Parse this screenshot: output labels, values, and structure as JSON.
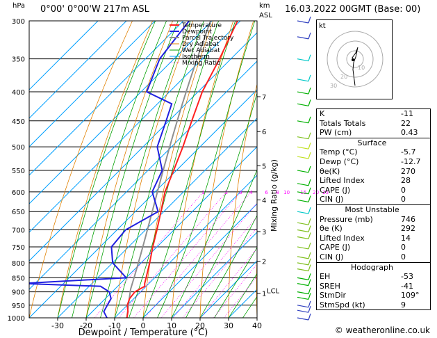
{
  "header": {
    "units_hpa": "hPa",
    "location": "0°00' 0°00'W 217m ASL",
    "units_km": "km",
    "units_asl": "ASL",
    "datetime": "16.03.2022 00GMT (Base: 00)"
  },
  "footer": "© weatheronline.co.uk",
  "colors": {
    "temperature": "#ff2020",
    "dewpoint": "#2020e0",
    "parcel": "#909090",
    "dry_adiabat": "#e08000",
    "wet_adiabat": "#00a000",
    "isotherm": "#00a0ff",
    "mixing_ratio": "#ff00ff"
  },
  "legend": [
    "Temperature",
    "Dewpoint",
    "Parcel Trajectory",
    "Dry Adiabat",
    "Wet Adiabat",
    "Isotherm",
    "Mixing Ratio"
  ],
  "chart_data": {
    "type": "line",
    "xlabel": "Dewpoint / Temperature (°C)",
    "ylabel": "hPa",
    "y2label": "Mixing Ratio (g/kg)",
    "x_ticks": [
      -30,
      -20,
      -10,
      0,
      10,
      20,
      30,
      40
    ],
    "xlim": [
      -40,
      40
    ],
    "pressure_ticks": [
      300,
      350,
      400,
      450,
      500,
      550,
      600,
      650,
      700,
      750,
      800,
      850,
      900,
      950,
      1000
    ],
    "ylim": [
      1000,
      300
    ],
    "y_scale": "log",
    "skew": true,
    "km_ticks": [
      {
        "label": "1",
        "p": 905
      },
      {
        "label": "2",
        "p": 795
      },
      {
        "label": "3",
        "p": 705
      },
      {
        "label": "4",
        "p": 620
      },
      {
        "label": "5",
        "p": 540
      },
      {
        "label": "6",
        "p": 470
      },
      {
        "label": "7",
        "p": 408
      }
    ],
    "lcl": {
      "label": "LCL",
      "p": 895
    },
    "mixing_ratio_labels": [
      "1",
      "2",
      "3",
      "4",
      "6",
      "8",
      "10",
      "15",
      "20",
      "25"
    ],
    "series": [
      {
        "name": "Temperature",
        "p": [
          1000,
          975,
          950,
          925,
          900,
          880,
          870,
          850,
          800,
          750,
          700,
          650,
          600,
          550,
          500,
          450,
          400,
          350,
          300
        ],
        "t": [
          -5.7,
          -7.5,
          -10,
          -11.5,
          -12,
          -10.5,
          -11.5,
          -13,
          -17,
          -21.5,
          -26,
          -31,
          -36.5,
          -41,
          -46,
          -52,
          -58.5,
          -64,
          -71
        ]
      },
      {
        "name": "Dewpoint",
        "p": [
          1000,
          975,
          950,
          925,
          900,
          880,
          870,
          850,
          800,
          750,
          700,
          650,
          600,
          550,
          500,
          450,
          420,
          400,
          350,
          300
        ],
        "t": [
          -12.7,
          -16,
          -17,
          -18,
          -21,
          -26,
          -55,
          -20,
          -30,
          -36,
          -37,
          -32,
          -41,
          -45,
          -55,
          -61,
          -65,
          -78,
          -85,
          -88
        ]
      }
    ]
  },
  "hodograph": {
    "label": "kt",
    "rings": [
      "10",
      "20",
      "30"
    ]
  },
  "stats": {
    "top": [
      {
        "label": "K",
        "value": "-11"
      },
      {
        "label": "Totals Totals",
        "value": "22"
      },
      {
        "label": "PW (cm)",
        "value": "0.43"
      }
    ],
    "surface": {
      "title": "Surface",
      "rows": [
        {
          "label": "Temp (°C)",
          "value": "-5.7"
        },
        {
          "label": "Dewp (°C)",
          "value": "-12.7"
        },
        {
          "label": "θe(K)",
          "value": "270"
        },
        {
          "label": "Lifted Index",
          "value": "28"
        },
        {
          "label": "CAPE (J)",
          "value": "0"
        },
        {
          "label": "CIN (J)",
          "value": "0"
        }
      ]
    },
    "most_unstable": {
      "title": "Most Unstable",
      "rows": [
        {
          "label": "Pressure (mb)",
          "value": "746"
        },
        {
          "label": "θe (K)",
          "value": "292"
        },
        {
          "label": "Lifted Index",
          "value": "14"
        },
        {
          "label": "CAPE (J)",
          "value": "0"
        },
        {
          "label": "CIN (J)",
          "value": "0"
        }
      ]
    },
    "hodograph": {
      "title": "Hodograph",
      "rows": [
        {
          "label": "EH",
          "value": "-53"
        },
        {
          "label": "SREH",
          "value": "-41"
        },
        {
          "label": "StmDir",
          "value": "109°"
        },
        {
          "label": "StmSpd (kt)",
          "value": "9"
        }
      ]
    }
  }
}
